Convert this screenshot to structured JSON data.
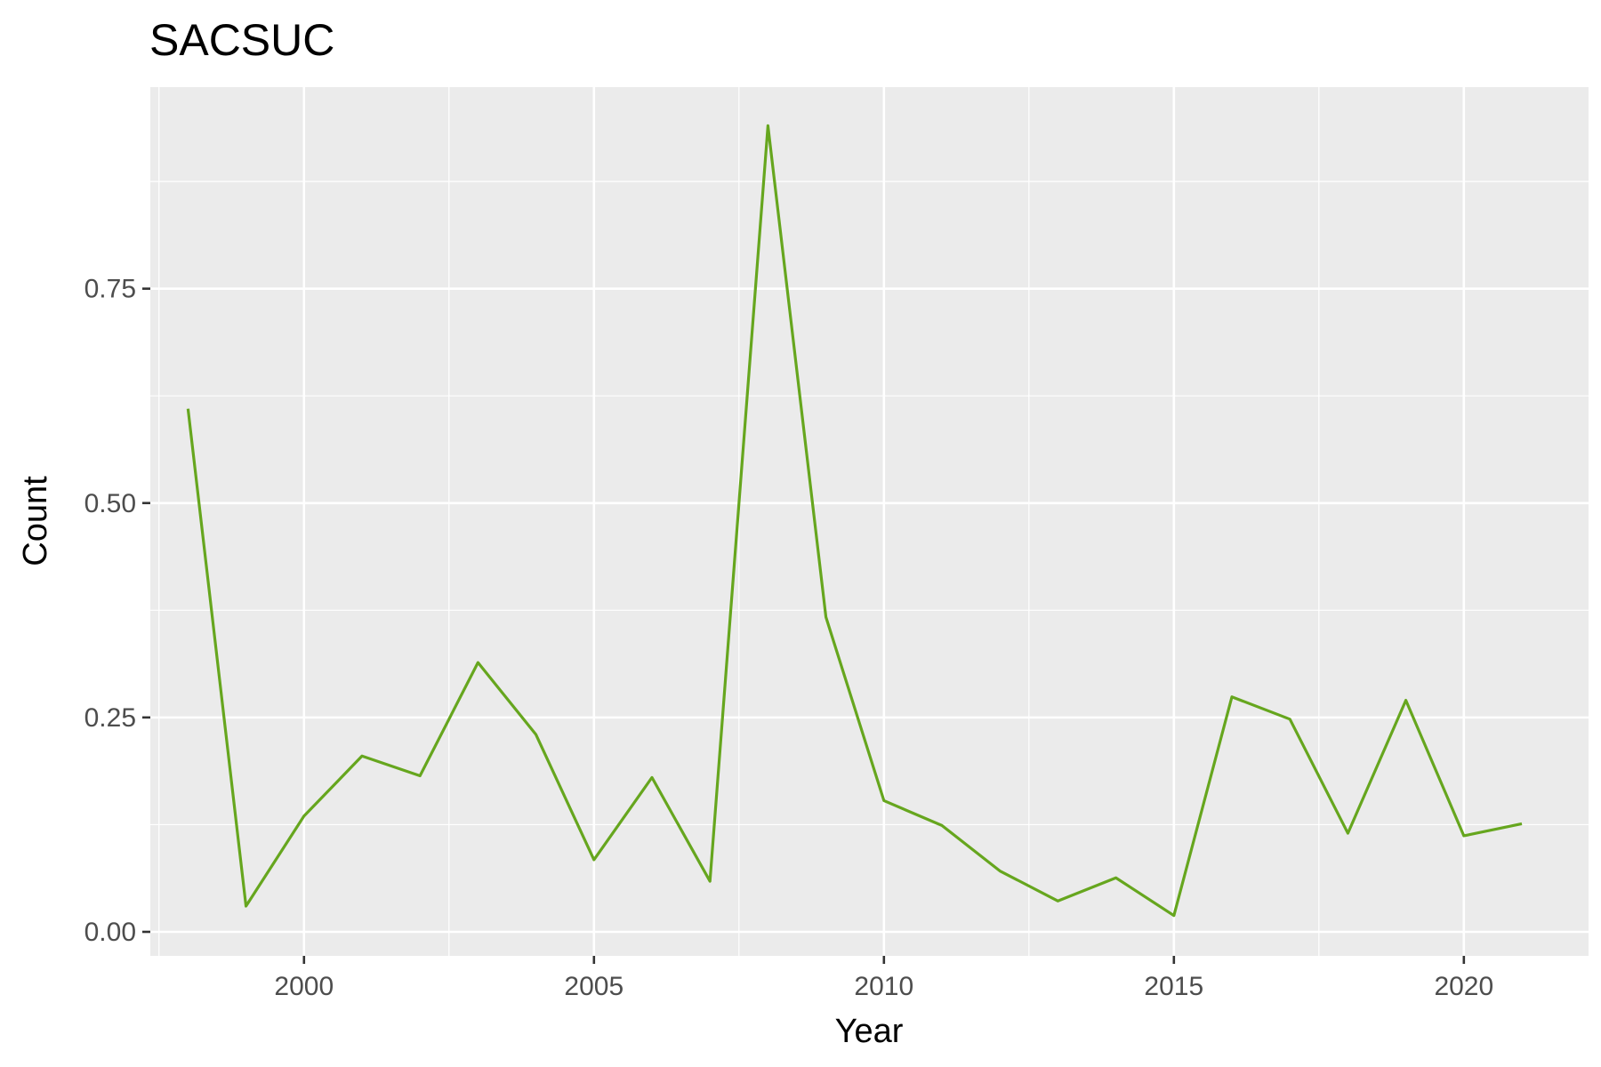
{
  "chart_data": {
    "type": "line",
    "title": "SACSUC",
    "xlabel": "Year",
    "ylabel": "Count",
    "x": [
      1998,
      1999,
      2000,
      2001,
      2002,
      2003,
      2004,
      2005,
      2006,
      2007,
      2008,
      2009,
      2010,
      2011,
      2012,
      2013,
      2014,
      2015,
      2016,
      2017,
      2018,
      2019,
      2020,
      2021
    ],
    "series": [
      {
        "values": [
          0.61,
          0.03,
          0.135,
          0.205,
          0.182,
          0.314,
          0.23,
          0.084,
          0.18,
          0.059,
          0.94,
          0.367,
          0.153,
          0.124,
          0.071,
          0.036,
          0.063,
          0.019,
          0.274,
          0.248,
          0.115,
          0.27,
          0.112,
          0.126
        ],
        "color": "#66a61e"
      }
    ],
    "xlim": [
      1997.35,
      2022.15
    ],
    "ylim": [
      -0.028,
      0.985
    ],
    "x_ticks": [
      2000,
      2005,
      2010,
      2015,
      2020
    ],
    "x_tick_labels": [
      "2000",
      "2005",
      "2010",
      "2015",
      "2020"
    ],
    "y_ticks": [
      0,
      0.25,
      0.5,
      0.75
    ],
    "y_tick_labels": [
      "0.00",
      "0.25",
      "0.50",
      "0.75"
    ],
    "grid": true,
    "panel_background": "#ebebeb",
    "grid_color": "#ffffff"
  }
}
